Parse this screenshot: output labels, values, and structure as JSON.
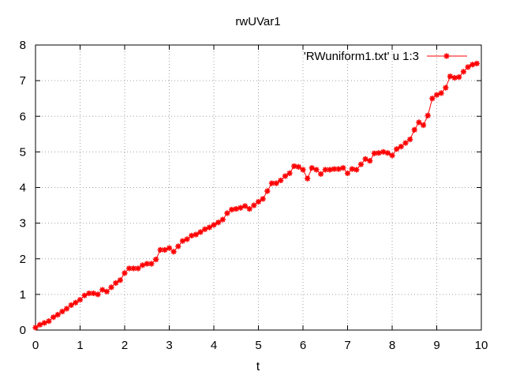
{
  "chart_data": {
    "type": "line",
    "title": "rwUVar1",
    "xlabel": "t",
    "ylabel": "",
    "xlim": [
      0,
      10
    ],
    "ylim": [
      0,
      8
    ],
    "xticks": [
      "0",
      "1",
      "2",
      "3",
      "4",
      "5",
      "6",
      "7",
      "8",
      "9",
      "10"
    ],
    "yticks": [
      "0",
      "1",
      "2",
      "3",
      "4",
      "5",
      "6",
      "7",
      "8"
    ],
    "grid": true,
    "legend_position": "top-right",
    "series": [
      {
        "name": "'RWuniform1.txt' u 1:3",
        "color": "#ff0000",
        "marker": "asterisk",
        "x": [
          0,
          0.1,
          0.2,
          0.3,
          0.4,
          0.5,
          0.6,
          0.7,
          0.8,
          0.9,
          1.0,
          1.1,
          1.2,
          1.3,
          1.4,
          1.5,
          1.6,
          1.7,
          1.8,
          1.9,
          2.0,
          2.1,
          2.2,
          2.3,
          2.4,
          2.5,
          2.6,
          2.7,
          2.8,
          2.9,
          3.0,
          3.1,
          3.2,
          3.3,
          3.4,
          3.5,
          3.6,
          3.7,
          3.8,
          3.9,
          4.0,
          4.1,
          4.2,
          4.3,
          4.4,
          4.5,
          4.6,
          4.7,
          4.8,
          4.9,
          5.0,
          5.1,
          5.2,
          5.3,
          5.4,
          5.5,
          5.6,
          5.7,
          5.8,
          5.9,
          6.0,
          6.1,
          6.2,
          6.3,
          6.4,
          6.5,
          6.6,
          6.7,
          6.8,
          6.9,
          7.0,
          7.1,
          7.2,
          7.3,
          7.4,
          7.5,
          7.6,
          7.7,
          7.8,
          7.9,
          8.0,
          8.1,
          8.2,
          8.3,
          8.4,
          8.5,
          8.6,
          8.7,
          8.8,
          8.9,
          9.0,
          9.1,
          9.2,
          9.3,
          9.4,
          9.5,
          9.6,
          9.7,
          9.8,
          9.9
        ],
        "y": [
          0.07,
          0.15,
          0.2,
          0.25,
          0.36,
          0.43,
          0.52,
          0.6,
          0.7,
          0.77,
          0.85,
          0.97,
          1.03,
          1.03,
          1.0,
          1.13,
          1.08,
          1.2,
          1.32,
          1.4,
          1.6,
          1.73,
          1.73,
          1.73,
          1.82,
          1.86,
          1.86,
          1.98,
          2.25,
          2.25,
          2.3,
          2.2,
          2.35,
          2.5,
          2.55,
          2.65,
          2.68,
          2.75,
          2.83,
          2.88,
          2.95,
          3.02,
          3.1,
          3.28,
          3.38,
          3.4,
          3.43,
          3.48,
          3.4,
          3.5,
          3.6,
          3.68,
          3.9,
          4.12,
          4.12,
          4.2,
          4.32,
          4.4,
          4.6,
          4.58,
          4.5,
          4.25,
          4.55,
          4.5,
          4.38,
          4.5,
          4.5,
          4.52,
          4.52,
          4.55,
          4.4,
          4.52,
          4.5,
          4.65,
          4.8,
          4.75,
          4.96,
          4.97,
          5.0,
          4.97,
          4.9,
          5.08,
          5.15,
          5.25,
          5.35,
          5.62,
          5.83,
          5.75,
          6.02,
          6.5,
          6.6,
          6.65,
          6.8,
          7.12,
          7.08,
          7.1,
          7.25,
          7.38,
          7.45,
          7.48
        ]
      }
    ]
  }
}
